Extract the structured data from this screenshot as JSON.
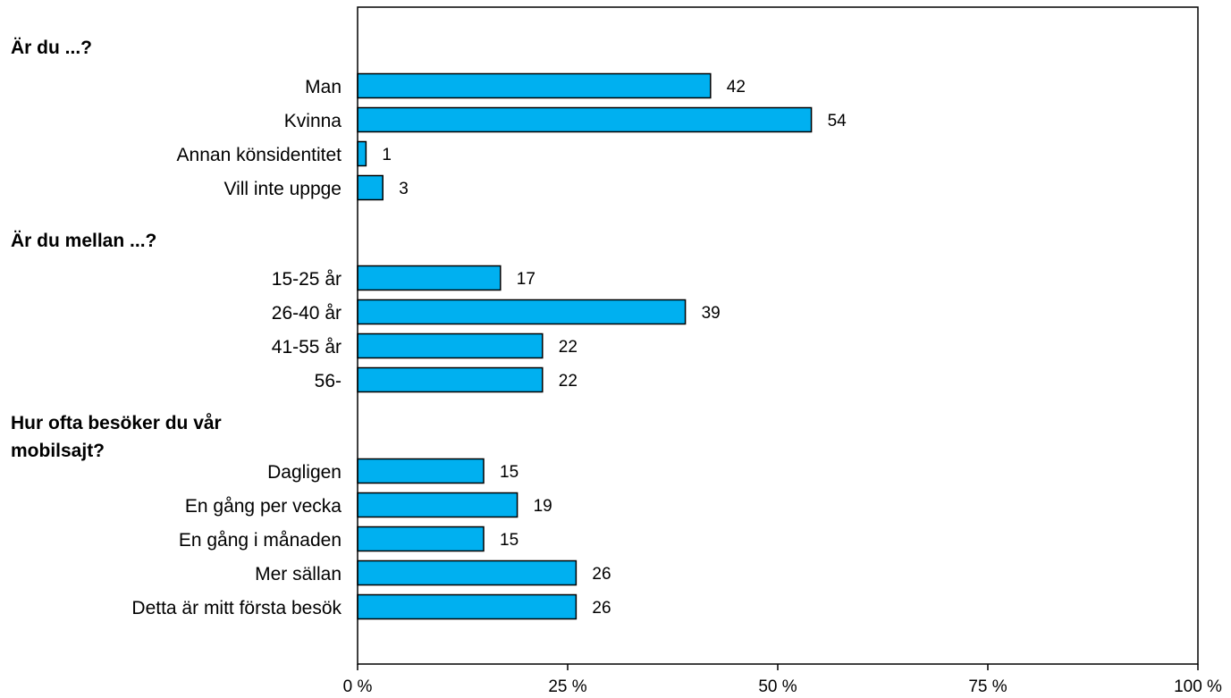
{
  "chart_data": {
    "type": "bar",
    "orientation": "horizontal",
    "bar_color": "#00b0f0",
    "bar_edge_color": "#000000",
    "xlim": [
      0,
      100
    ],
    "x_ticks": [
      "0 %",
      "25 %",
      "50 %",
      "75 %",
      "100 %"
    ],
    "x_tick_values": [
      0,
      25,
      50,
      75,
      100
    ],
    "grid": false,
    "legend": "none",
    "groups": [
      {
        "title": "Är du ...?",
        "categories": [
          "Man",
          "Kvinna",
          "Annan könsidentitet",
          "Vill inte uppge"
        ],
        "values": [
          42,
          54,
          1,
          3
        ]
      },
      {
        "title": "Är du mellan ...?",
        "categories": [
          "15-25 år",
          "26-40 år",
          "41-55 år",
          "56-"
        ],
        "values": [
          17,
          39,
          22,
          22
        ]
      },
      {
        "title": "Hur ofta besöker du vår mobilsajt?",
        "title_lines": [
          "Hur ofta besöker du vår",
          "mobilsajt?"
        ],
        "categories": [
          "Dagligen",
          "En gång per vecka",
          "En gång i månaden",
          "Mer sällan",
          "Detta är mitt första besök"
        ],
        "values": [
          15,
          19,
          15,
          26,
          26
        ]
      }
    ]
  }
}
